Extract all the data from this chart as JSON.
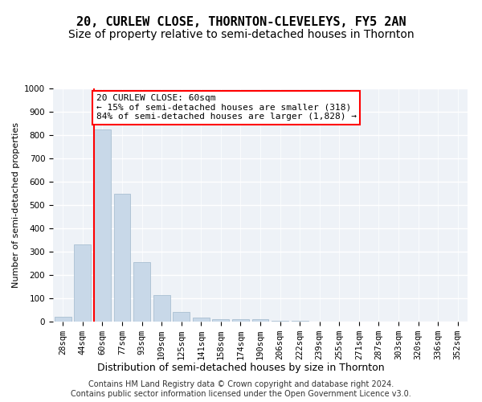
{
  "title": "20, CURLEW CLOSE, THORNTON-CLEVELEYS, FY5 2AN",
  "subtitle": "Size of property relative to semi-detached houses in Thornton",
  "xlabel": "Distribution of semi-detached houses by size in Thornton",
  "ylabel": "Number of semi-detached properties",
  "bar_color": "#c8d8e8",
  "bar_edgecolor": "#a0b8cc",
  "annotation_line_color": "red",
  "annotation_text": "20 CURLEW CLOSE: 60sqm\n← 15% of semi-detached houses are smaller (318)\n84% of semi-detached houses are larger (1,828) →",
  "bins": [
    "28sqm",
    "44sqm",
    "60sqm",
    "77sqm",
    "93sqm",
    "109sqm",
    "125sqm",
    "141sqm",
    "158sqm",
    "174sqm",
    "190sqm",
    "206sqm",
    "222sqm",
    "239sqm",
    "255sqm",
    "271sqm",
    "287sqm",
    "303sqm",
    "320sqm",
    "336sqm",
    "352sqm"
  ],
  "values": [
    20,
    330,
    825,
    548,
    255,
    115,
    40,
    17,
    10,
    10,
    10,
    5,
    2,
    1,
    1,
    0,
    0,
    0,
    0,
    0,
    0
  ],
  "ylim": [
    0,
    1000
  ],
  "yticks": [
    0,
    100,
    200,
    300,
    400,
    500,
    600,
    700,
    800,
    900,
    1000
  ],
  "background_color": "#eef2f7",
  "grid_color": "#ffffff",
  "footer": "Contains HM Land Registry data © Crown copyright and database right 2024.\nContains public sector information licensed under the Open Government Licence v3.0.",
  "title_fontsize": 11,
  "subtitle_fontsize": 10,
  "xlabel_fontsize": 9,
  "ylabel_fontsize": 8,
  "tick_fontsize": 7.5,
  "annotation_fontsize": 8,
  "footer_fontsize": 7
}
